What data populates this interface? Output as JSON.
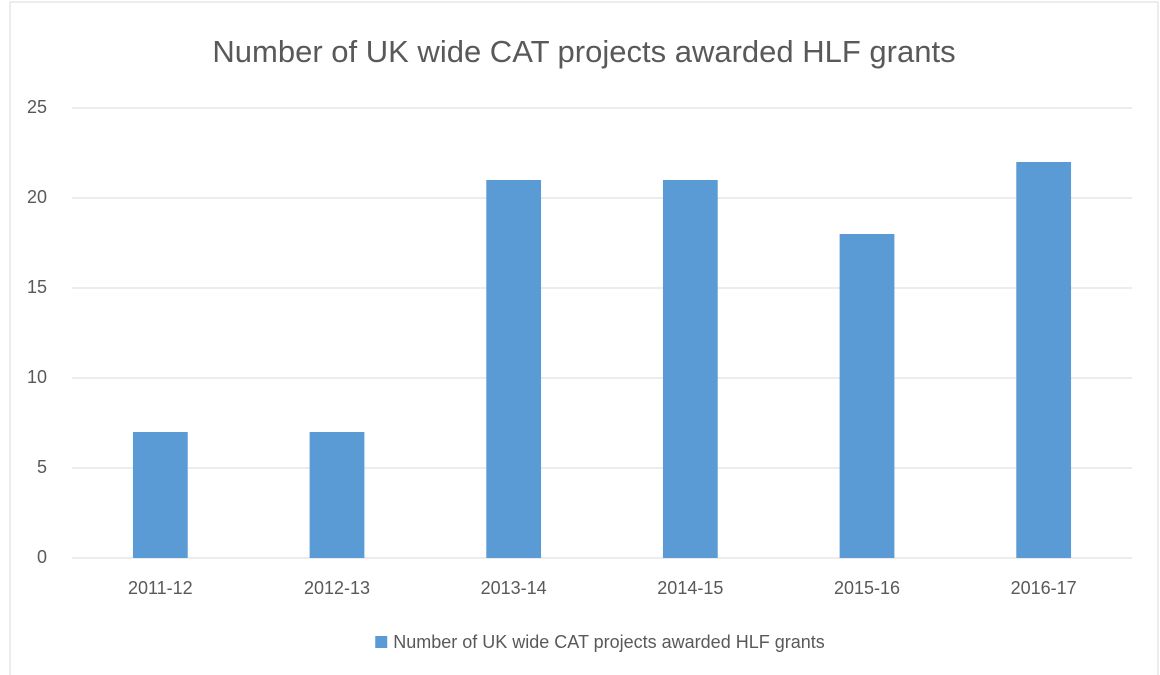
{
  "chart_data": {
    "type": "bar",
    "title": "Number of UK wide CAT projects awarded HLF grants",
    "categories": [
      "2011-12",
      "2012-13",
      "2013-14",
      "2014-15",
      "2015-16",
      "2016-17"
    ],
    "series": [
      {
        "name": "Number of UK wide CAT projects awarded HLF grants",
        "color": "#5b9bd5",
        "values": [
          7,
          7,
          21,
          21,
          18,
          22
        ]
      }
    ],
    "ylim": [
      0,
      25
    ],
    "yticks": [
      0,
      5,
      10,
      15,
      20,
      25
    ],
    "grid": true,
    "legend": "bottom"
  }
}
